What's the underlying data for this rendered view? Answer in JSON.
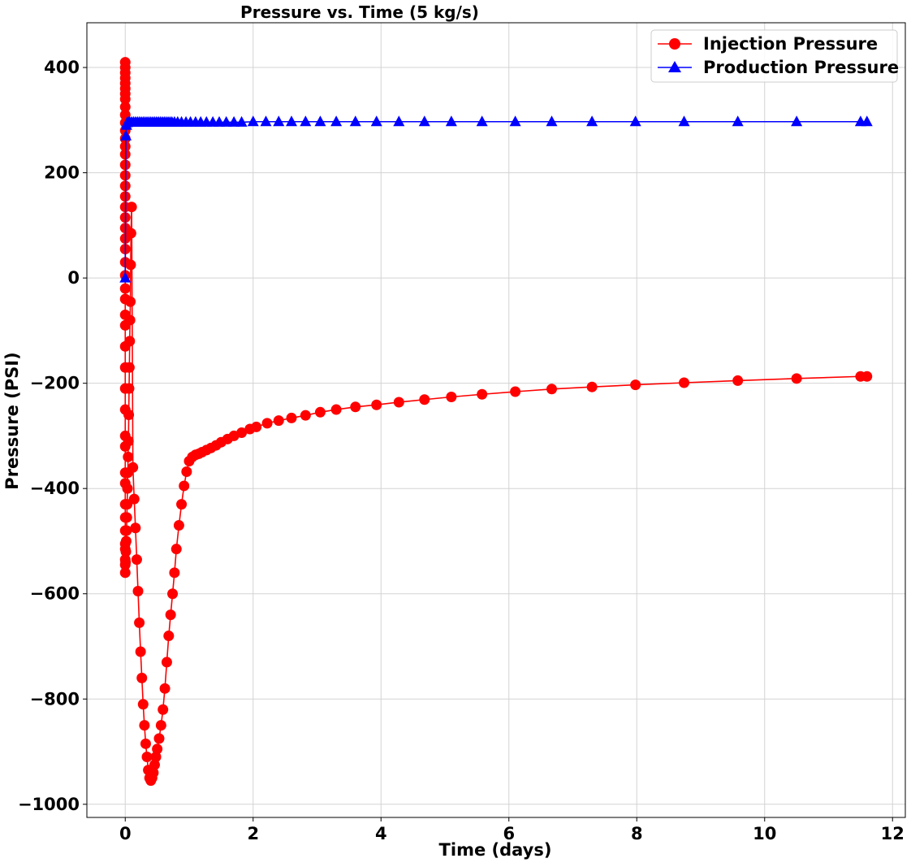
{
  "chart_data": {
    "type": "line",
    "title": "Pressure vs. Time (5 kg/s)",
    "xlabel": "Time (days)",
    "ylabel": "Pressure (PSI)",
    "xlim": [
      -0.6,
      12.2
    ],
    "ylim": [
      -1025,
      485
    ],
    "xticks": [
      0,
      2,
      4,
      6,
      8,
      10,
      12
    ],
    "yticks": [
      -1000,
      -800,
      -600,
      -400,
      -200,
      0,
      200,
      400
    ],
    "xtick_labels": [
      "0",
      "2",
      "4",
      "6",
      "8",
      "10",
      "12"
    ],
    "ytick_labels": [
      "−1000",
      "−800",
      "−600",
      "−400",
      "−200",
      "0",
      "200",
      "400"
    ],
    "grid": true,
    "legend_position": "top-right",
    "series": [
      {
        "name": "Injection Pressure",
        "color": "#ff0000",
        "marker": "circle",
        "x": [
          0,
          0,
          0,
          0,
          0,
          0,
          0,
          0,
          0,
          0,
          0,
          0,
          0,
          0,
          0,
          0,
          0,
          0,
          0,
          0,
          0,
          0,
          0,
          0,
          0,
          0,
          0,
          0,
          0,
          0,
          0,
          0,
          0,
          0,
          0,
          0,
          0,
          0,
          0,
          0,
          0,
          0,
          0,
          0,
          0,
          0,
          0.005,
          0.01,
          0.015,
          0.02,
          0.025,
          0.03,
          0.035,
          0.04,
          0.045,
          0.05,
          0.055,
          0.06,
          0.065,
          0.07,
          0.075,
          0.08,
          0.085,
          0.09,
          0.1,
          0.12,
          0.14,
          0.16,
          0.18,
          0.2,
          0.22,
          0.24,
          0.26,
          0.28,
          0.3,
          0.32,
          0.34,
          0.36,
          0.38,
          0.4,
          0.42,
          0.44,
          0.46,
          0.48,
          0.5,
          0.53,
          0.56,
          0.59,
          0.62,
          0.65,
          0.68,
          0.71,
          0.74,
          0.77,
          0.8,
          0.84,
          0.88,
          0.92,
          0.96,
          1.0,
          1.05,
          1.1,
          1.15,
          1.2,
          1.27,
          1.34,
          1.42,
          1.5,
          1.6,
          1.7,
          1.82,
          1.95,
          2.05,
          2.22,
          2.4,
          2.6,
          2.82,
          3.05,
          3.3,
          3.6,
          3.93,
          4.28,
          4.68,
          5.1,
          5.58,
          6.1,
          6.67,
          7.3,
          7.98,
          8.74,
          9.58,
          10.5,
          11.5,
          11.6
        ],
        "y": [
          410,
          400,
          390,
          380,
          370,
          360,
          350,
          340,
          325,
          310,
          295,
          280,
          265,
          250,
          235,
          215,
          195,
          175,
          155,
          135,
          115,
          95,
          75,
          55,
          30,
          5,
          -20,
          -40,
          -70,
          -90,
          -130,
          -170,
          -210,
          -250,
          -300,
          -320,
          -370,
          -390,
          -430,
          -455,
          -480,
          -505,
          -515,
          -535,
          -545,
          -560,
          -540,
          -520,
          -500,
          -480,
          -455,
          -430,
          -400,
          -370,
          -340,
          -310,
          -260,
          -210,
          -170,
          -120,
          -80,
          -45,
          25,
          85,
          135,
          -360,
          -420,
          -475,
          -535,
          -595,
          -655,
          -710,
          -760,
          -810,
          -850,
          -885,
          -910,
          -935,
          -950,
          -955,
          -950,
          -940,
          -925,
          -910,
          -895,
          -875,
          -850,
          -820,
          -780,
          -730,
          -680,
          -640,
          -600,
          -560,
          -515,
          -470,
          -430,
          -395,
          -368,
          -348,
          -340,
          -336,
          -334,
          -331,
          -327,
          -323,
          -318,
          -312,
          -306,
          -300,
          -294,
          -287,
          -283,
          -276,
          -271,
          -266,
          -261,
          -255,
          -250,
          -245,
          -241,
          -236,
          -231,
          -226,
          -221,
          -216,
          -211,
          -207,
          -203,
          -199,
          -195,
          -191,
          -187,
          -187
        ]
      },
      {
        "name": "Production Pressure",
        "color": "#0000ff",
        "marker": "triangle",
        "x": [
          0,
          0.01,
          0.02,
          0.03,
          0.05,
          0.07,
          0.1,
          0.13,
          0.16,
          0.19,
          0.22,
          0.25,
          0.28,
          0.31,
          0.34,
          0.37,
          0.4,
          0.43,
          0.46,
          0.49,
          0.52,
          0.55,
          0.58,
          0.61,
          0.64,
          0.67,
          0.7,
          0.73,
          0.77,
          0.82,
          0.88,
          0.95,
          1.02,
          1.1,
          1.18,
          1.27,
          1.37,
          1.47,
          1.58,
          1.7,
          1.82,
          2.0,
          2.2,
          2.4,
          2.6,
          2.82,
          3.05,
          3.3,
          3.6,
          3.93,
          4.28,
          4.68,
          5.1,
          5.58,
          6.1,
          6.67,
          7.3,
          7.98,
          8.74,
          9.58,
          10.5,
          11.5,
          11.6
        ],
        "y": [
          0,
          270,
          290,
          295,
          296,
          296,
          296,
          296,
          296,
          296,
          296,
          296,
          296,
          296,
          296,
          296,
          296,
          296,
          296,
          296,
          296,
          296,
          296,
          296,
          296,
          296,
          296,
          296,
          296,
          296,
          296,
          296,
          296,
          296,
          296,
          296,
          296,
          296,
          296,
          296,
          296,
          297,
          297,
          297,
          297,
          297,
          297,
          297,
          297,
          297,
          297,
          297,
          297,
          297,
          297,
          297,
          297,
          297,
          297,
          297,
          297,
          297,
          297
        ]
      }
    ]
  }
}
